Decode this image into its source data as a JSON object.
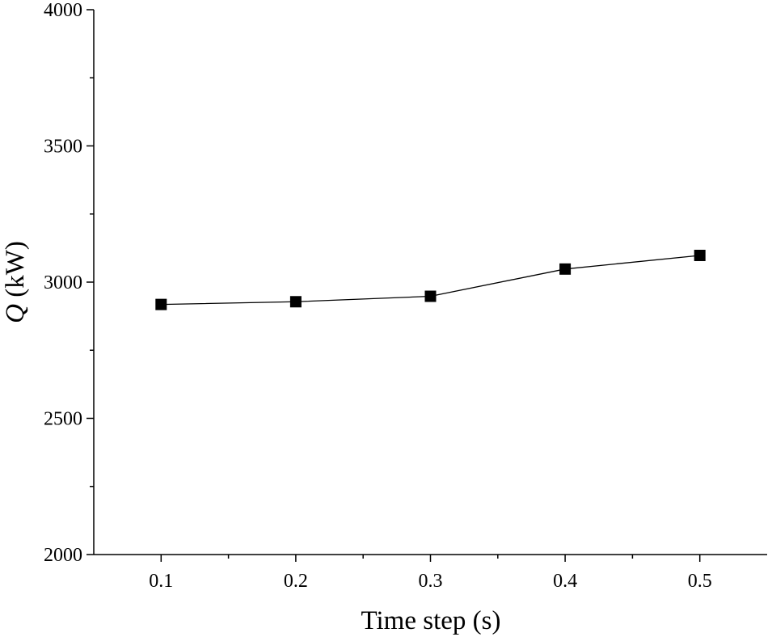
{
  "chart_data": {
    "type": "line",
    "x": [
      0.1,
      0.2,
      0.3,
      0.4,
      0.5
    ],
    "series": [
      {
        "values": [
          2918,
          2928,
          2948,
          3048,
          3098
        ]
      }
    ],
    "xlabel": "Time step (s)",
    "ylabel_symbol": "Q",
    "ylabel_unit": " (kW)",
    "x_tick_labels": [
      "0.1",
      "0.2",
      "0.3",
      "0.4",
      "0.5"
    ],
    "y_tick_labels": [
      "2000",
      "2500",
      "3000",
      "3500",
      "4000"
    ],
    "xlim": [
      0.05,
      0.55
    ],
    "ylim": [
      2000,
      4000
    ],
    "x_major_ticks": [
      0.1,
      0.2,
      0.3,
      0.4,
      0.5
    ],
    "x_minor_ticks": [
      0.15,
      0.25,
      0.35,
      0.45
    ],
    "y_major_ticks": [
      2000,
      2500,
      3000,
      3500,
      4000
    ],
    "y_minor_ticks": [
      2250,
      2750,
      3250,
      3750
    ],
    "marker": "square",
    "color": "#000000",
    "grid": false
  }
}
